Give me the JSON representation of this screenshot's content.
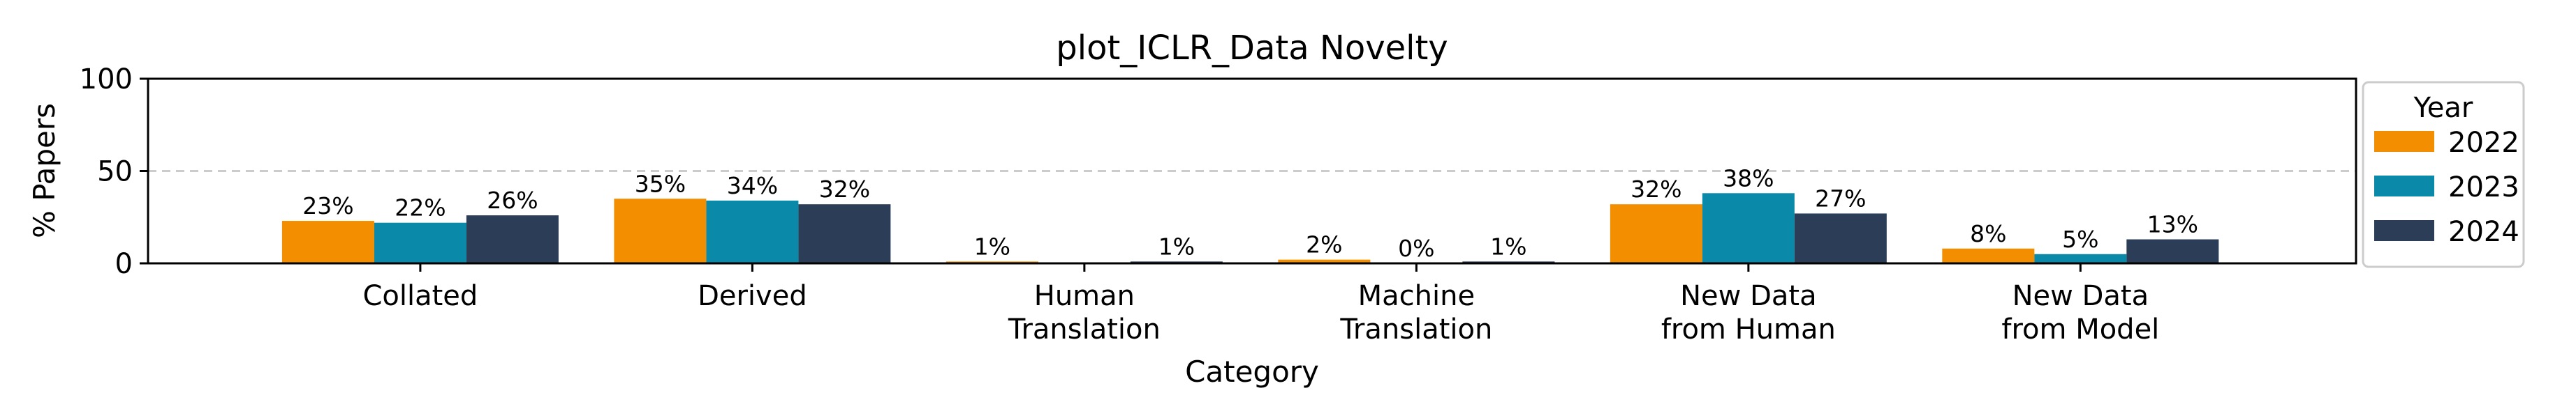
{
  "chart_data": {
    "type": "bar",
    "title": "plot_ICLR_Data Novelty",
    "xlabel": "Category",
    "ylabel": "% Papers",
    "ylim": [
      0,
      100
    ],
    "yticks": [
      "0",
      "50",
      "100"
    ],
    "grid": "horizontal dashed at 50",
    "categories": [
      [
        "Collated"
      ],
      [
        "Derived"
      ],
      [
        "Human",
        "Translation"
      ],
      [
        "Machine",
        "Translation"
      ],
      [
        "New Data",
        "from Human"
      ],
      [
        "New Data",
        "from Model"
      ]
    ],
    "series": [
      {
        "name": "2022",
        "color": "#F28E00",
        "values": [
          23,
          35,
          1,
          2,
          32,
          8
        ],
        "labels": [
          "23%",
          "35%",
          "1%",
          "2%",
          "32%",
          "8%"
        ]
      },
      {
        "name": "2023",
        "color": "#0A8AA8",
        "values": [
          22,
          34,
          0,
          0,
          38,
          5
        ],
        "labels": [
          "22%",
          "34%",
          "",
          "0%",
          "38%",
          "5%"
        ]
      },
      {
        "name": "2024",
        "color": "#2C3E57",
        "values": [
          26,
          32,
          1,
          1,
          27,
          13
        ],
        "labels": [
          "26%",
          "32%",
          "1%",
          "1%",
          "27%",
          "13%"
        ]
      }
    ],
    "legend": {
      "title": "Year",
      "placement": "outside-right"
    }
  }
}
